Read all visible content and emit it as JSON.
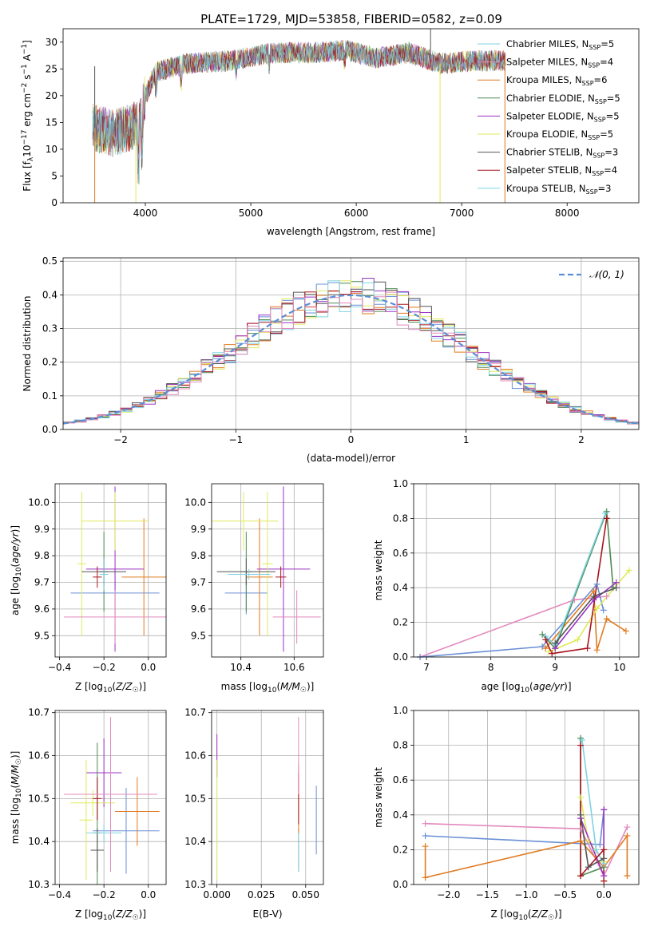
{
  "figure_title": "PLATE=1729, MJD=53858, FIBERID=0582, z=0.09",
  "colors": {
    "c0": "#6a8fd6",
    "c1": "#e07a1f",
    "c2": "#4d8a52",
    "c3": "#9b31c4",
    "c4": "#e0ea5a",
    "c5": "#555555",
    "c6": "#a8141e",
    "c7": "#7fd3e3",
    "c8": "#e389be",
    "normal": "#5b8ed6"
  },
  "chart_data": [
    {
      "id": "spectrum",
      "type": "line",
      "title": "PLATE=1729, MJD=53858, FIBERID=0582, z=0.09",
      "xlabel": "wavelength [Angstrom, rest frame]",
      "ylabel": "Flux [f_λ 10^-17 erg cm^-2 s^-1 A^-1]",
      "xlim": [
        3220,
        8680
      ],
      "ylim": [
        0,
        32.5
      ],
      "xticks": [
        4000,
        5000,
        6000,
        7000,
        8000
      ],
      "yticks": [
        0,
        5,
        10,
        15,
        20,
        25,
        30
      ],
      "grid": false,
      "legend": "upper right",
      "continuum_knots": [
        [
          3500,
          14
        ],
        [
          3700,
          13
        ],
        [
          3850,
          14
        ],
        [
          3950,
          15
        ],
        [
          4000,
          20
        ],
        [
          4100,
          24.5
        ],
        [
          4400,
          26
        ],
        [
          4800,
          26.5
        ],
        [
          5200,
          28
        ],
        [
          5600,
          28
        ],
        [
          5900,
          28.5
        ],
        [
          6200,
          27
        ],
        [
          6500,
          28
        ],
        [
          6800,
          26
        ],
        [
          7100,
          26.5
        ],
        [
          7400,
          26.5
        ]
      ],
      "series": [
        {
          "name": "Chabrier MILES, N_SSP=5",
          "color": "c7"
        },
        {
          "name": "Salpeter MILES, N_SSP=4",
          "color": "c8"
        },
        {
          "name": "Kroupa MILES, N_SSP=6",
          "color": "c1"
        },
        {
          "name": "Chabrier ELODIE, N_SSP=5",
          "color": "c2"
        },
        {
          "name": "Salpeter ELODIE, N_SSP=5",
          "color": "c3"
        },
        {
          "name": "Kroupa ELODIE, N_SSP=5",
          "color": "c4"
        },
        {
          "name": "Chabrier STELIB, N_SSP=3",
          "color": "c5"
        },
        {
          "name": "Salpeter STELIB, N_SSP=4",
          "color": "c6"
        },
        {
          "name": "Kroupa STELIB, N_SSP=3",
          "color": "c7"
        }
      ]
    },
    {
      "id": "residuals",
      "type": "line",
      "xlabel": "(data-model)/error",
      "ylabel": "Normed distribution",
      "xlim": [
        -2.5,
        2.5
      ],
      "ylim": [
        0,
        0.51
      ],
      "xticks": [
        -2,
        -1,
        0,
        1,
        2
      ],
      "yticks": [
        0.0,
        0.1,
        0.2,
        0.3,
        0.4,
        0.5
      ],
      "grid": true,
      "legend": "upper right",
      "legend_label": "𝒩(0, 1)",
      "bin_width": 0.1
    },
    {
      "id": "age_vs_Z",
      "type": "scatter",
      "xlabel": "Z [log10(Z/Z☉)]",
      "ylabel": "age  [log10(age/yr)]",
      "xlim": [
        -0.42,
        0.08
      ],
      "ylim": [
        9.42,
        10.07
      ],
      "xticks": [
        -0.4,
        -0.2,
        0.0
      ],
      "yticks": [
        9.5,
        9.6,
        9.7,
        9.8,
        9.9,
        10.0
      ],
      "grid": true,
      "points": [
        {
          "color": "c0",
          "x": -0.15,
          "xerr": 0.2,
          "y": 9.66,
          "yerr": 0.08
        },
        {
          "color": "c1",
          "x": -0.02,
          "xerr": 0.1,
          "y": 9.72,
          "yerr": 0.22
        },
        {
          "color": "c2",
          "x": -0.2,
          "xerr": 0.02,
          "y": 9.74,
          "yerr": 0.15
        },
        {
          "color": "c3",
          "x": -0.15,
          "xerr": 0.13,
          "y": 9.75,
          "yerr": 0.31
        },
        {
          "color": "c4",
          "x": -0.15,
          "xerr": 0.15,
          "y": 9.93,
          "yerr": 0.11
        },
        {
          "color": "c4",
          "x": -0.3,
          "xerr": 0.02,
          "y": 9.77,
          "yerr": 0.27
        },
        {
          "color": "c5",
          "x": -0.2,
          "xerr": 0.1,
          "y": 9.74,
          "yerr": 0.05
        },
        {
          "color": "c6",
          "x": -0.23,
          "xerr": 0.02,
          "y": 9.72,
          "yerr": 0.04
        },
        {
          "color": "c7",
          "x": -0.2,
          "xerr": 0.02,
          "y": 9.73,
          "yerr": 0.06
        },
        {
          "color": "c8",
          "x": -0.15,
          "xerr": 0.23,
          "y": 9.57,
          "yerr": 0.1
        }
      ]
    },
    {
      "id": "age_vs_mass",
      "type": "scatter",
      "xlabel": "mass [log10(M/M☉)]",
      "ylabel": "",
      "xlim": [
        10.29,
        10.71
      ],
      "ylim": [
        9.42,
        10.07
      ],
      "xticks": [
        10.4,
        10.6
      ],
      "yticks": [
        9.5,
        9.6,
        9.7,
        9.8,
        9.9,
        10.0
      ],
      "grid": true,
      "points": [
        {
          "color": "c0",
          "x": 10.42,
          "xerr": 0.08,
          "y": 9.66,
          "yerr": 0.08
        },
        {
          "color": "c1",
          "x": 10.47,
          "xerr": 0.05,
          "y": 9.72,
          "yerr": 0.22
        },
        {
          "color": "c2",
          "x": 10.42,
          "xerr": 0.02,
          "y": 9.74,
          "yerr": 0.15
        },
        {
          "color": "c3",
          "x": 10.56,
          "xerr": 0.1,
          "y": 9.75,
          "yerr": 0.31
        },
        {
          "color": "c4",
          "x": 10.41,
          "xerr": 0.13,
          "y": 9.93,
          "yerr": 0.11
        },
        {
          "color": "c4",
          "x": 10.5,
          "xerr": 0.02,
          "y": 9.77,
          "yerr": 0.27
        },
        {
          "color": "c5",
          "x": 10.42,
          "xerr": 0.11,
          "y": 9.74,
          "yerr": 0.05
        },
        {
          "color": "c6",
          "x": 10.55,
          "xerr": 0.02,
          "y": 9.72,
          "yerr": 0.04
        },
        {
          "color": "c7",
          "x": 10.43,
          "xerr": 0.08,
          "y": 9.73,
          "yerr": 0.02
        },
        {
          "color": "c8",
          "x": 10.61,
          "xerr": 0.09,
          "y": 9.57,
          "yerr": 0.1
        }
      ]
    },
    {
      "id": "weight_vs_age",
      "type": "line",
      "xlabel": "age  [log10(age/yr)]",
      "ylabel": "mass weight",
      "xlim": [
        6.8,
        10.3
      ],
      "ylim": [
        0,
        1.0
      ],
      "xticks": [
        7,
        8,
        9,
        10
      ],
      "yticks": [
        0.0,
        0.2,
        0.4,
        0.6,
        0.8,
        1.0
      ],
      "grid": true,
      "series": [
        {
          "color": "c8",
          "points": [
            [
              6.9,
              0.0
            ],
            [
              9.3,
              0.33
            ],
            [
              9.8,
              0.35
            ]
          ]
        },
        {
          "color": "c0",
          "points": [
            [
              6.9,
              0.0
            ],
            [
              8.8,
              0.06
            ],
            [
              9.65,
              0.42
            ],
            [
              9.75,
              0.27
            ]
          ]
        },
        {
          "color": "c1",
          "points": [
            [
              8.85,
              0.05
            ],
            [
              9.6,
              0.38
            ],
            [
              9.65,
              0.04
            ],
            [
              9.8,
              0.22
            ],
            [
              10.1,
              0.15
            ]
          ]
        },
        {
          "color": "c4",
          "points": [
            [
              8.9,
              0.03
            ],
            [
              9.35,
              0.1
            ],
            [
              9.65,
              0.28
            ],
            [
              10.15,
              0.5
            ]
          ]
        },
        {
          "color": "c2",
          "points": [
            [
              8.8,
              0.13
            ],
            [
              9.0,
              0.05
            ],
            [
              9.8,
              0.84
            ],
            [
              9.9,
              0.4
            ]
          ]
        },
        {
          "color": "c7",
          "points": [
            [
              8.85,
              0.12
            ],
            [
              9.0,
              0.07
            ],
            [
              9.78,
              0.83
            ]
          ]
        },
        {
          "color": "c3",
          "points": [
            [
              9.0,
              0.05
            ],
            [
              9.6,
              0.33
            ],
            [
              9.95,
              0.43
            ]
          ]
        },
        {
          "color": "c6",
          "points": [
            [
              8.85,
              0.1
            ],
            [
              8.95,
              0.02
            ],
            [
              9.5,
              0.05
            ],
            [
              9.8,
              0.8
            ]
          ]
        },
        {
          "color": "c5",
          "points": [
            [
              9.0,
              0.08
            ],
            [
              9.6,
              0.35
            ],
            [
              9.95,
              0.4
            ]
          ]
        }
      ]
    },
    {
      "id": "mass_vs_Z",
      "type": "scatter",
      "xlabel": "Z [log10(Z/Z☉)]",
      "ylabel": "mass [log10(M/M☉)]",
      "xlim": [
        -0.42,
        0.08
      ],
      "ylim": [
        10.3,
        10.705
      ],
      "xticks": [
        -0.4,
        -0.2,
        0.0
      ],
      "yticks": [
        10.3,
        10.4,
        10.5,
        10.6,
        10.7
      ],
      "grid": true,
      "points": [
        {
          "color": "c0",
          "x": -0.1,
          "xerr": 0.15,
          "y": 10.425,
          "yerr": 0.1
        },
        {
          "color": "c1",
          "x": -0.05,
          "xerr": 0.1,
          "y": 10.47,
          "yerr": 0.08
        },
        {
          "color": "c2",
          "x": -0.23,
          "xerr": 0.02,
          "y": 10.42,
          "yerr": 0.21
        },
        {
          "color": "c3",
          "x": -0.2,
          "xerr": 0.08,
          "y": 10.56,
          "yerr": 0.08
        },
        {
          "color": "c4",
          "x": -0.28,
          "xerr": 0.03,
          "y": 10.45,
          "yerr": 0.14
        },
        {
          "color": "c4",
          "x": -0.25,
          "xerr": 0.1,
          "y": 10.49,
          "yerr": 0.03
        },
        {
          "color": "c5",
          "x": -0.23,
          "xerr": 0.03,
          "y": 10.38,
          "yerr": 0.05
        },
        {
          "color": "c6",
          "x": -0.23,
          "xerr": 0.02,
          "y": 10.5,
          "yerr": 0.05
        },
        {
          "color": "c7",
          "x": -0.2,
          "xerr": 0.08,
          "y": 10.42,
          "yerr": 0.02
        },
        {
          "color": "c8",
          "x": -0.17,
          "xerr": 0.21,
          "y": 10.51,
          "yerr": 0.18
        }
      ]
    },
    {
      "id": "mass_vs_ebv",
      "type": "scatter",
      "xlabel": "E(B-V)",
      "ylabel": "",
      "xlim": [
        -0.003,
        0.06
      ],
      "ylim": [
        10.3,
        10.705
      ],
      "xticks": [
        0.0,
        0.025,
        0.05
      ],
      "yticks": [
        10.3,
        10.4,
        10.5,
        10.6,
        10.7
      ],
      "grid": true,
      "points": [
        {
          "color": "c3",
          "x": 0.0,
          "xerr": 0,
          "y": 10.6,
          "yerr": 0.05
        },
        {
          "color": "c4",
          "x": 0.0,
          "xerr": 0,
          "y": 10.45,
          "yerr": 0.14
        },
        {
          "color": "c2",
          "x": 0.046,
          "xerr": 0,
          "y": 10.38,
          "yerr": 0.05
        },
        {
          "color": "c7",
          "x": 0.046,
          "xerr": 0,
          "y": 10.38,
          "yerr": 0.05
        },
        {
          "color": "c1",
          "x": 0.046,
          "xerr": 0,
          "y": 10.5,
          "yerr": 0.08
        },
        {
          "color": "c6",
          "x": 0.046,
          "xerr": 0,
          "y": 10.5,
          "yerr": 0.06
        },
        {
          "color": "c8",
          "x": 0.046,
          "xerr": 0,
          "y": 10.6,
          "yerr": 0.09
        },
        {
          "color": "c0",
          "x": 0.056,
          "xerr": 0,
          "y": 10.45,
          "yerr": 0.08
        }
      ]
    },
    {
      "id": "weight_vs_Z",
      "type": "line",
      "xlabel": "Z [log10(Z/Z☉)]",
      "ylabel": "mass weight",
      "xlim": [
        -2.45,
        0.45
      ],
      "ylim": [
        0,
        1.0
      ],
      "xticks": [
        -2.0,
        -1.5,
        -1.0,
        -0.5,
        0.0
      ],
      "yticks": [
        0.0,
        0.2,
        0.4,
        0.6,
        0.8,
        1.0
      ],
      "grid": true,
      "series": [
        {
          "color": "c8",
          "points": [
            [
              -2.3,
              0.35
            ],
            [
              -0.3,
              0.32
            ],
            [
              0.0,
              0.05
            ],
            [
              0.3,
              0.33
            ]
          ]
        },
        {
          "color": "c0",
          "points": [
            [
              -2.3,
              0.28
            ],
            [
              -0.05,
              0.23
            ],
            [
              0.0,
              0.43
            ],
            [
              0.0,
              0.02
            ]
          ]
        },
        {
          "color": "c1",
          "points": [
            [
              -2.3,
              0.22
            ],
            [
              -2.3,
              0.04
            ],
            [
              -0.3,
              0.25
            ],
            [
              0.0,
              0.1
            ],
            [
              0.3,
              0.28
            ],
            [
              0.3,
              0.05
            ]
          ]
        },
        {
          "color": "c4",
          "points": [
            [
              -0.3,
              0.5
            ],
            [
              -0.2,
              0.25
            ],
            [
              0.0,
              0.13
            ],
            [
              0.0,
              0.02
            ]
          ]
        },
        {
          "color": "c2",
          "points": [
            [
              -0.3,
              0.84
            ],
            [
              -0.3,
              0.05
            ],
            [
              0.0,
              0.1
            ]
          ]
        },
        {
          "color": "c7",
          "points": [
            [
              -0.28,
              0.83
            ],
            [
              -0.1,
              0.2
            ],
            [
              0.0,
              0.12
            ]
          ]
        },
        {
          "color": "c3",
          "points": [
            [
              -0.3,
              0.38
            ],
            [
              0.0,
              0.05
            ],
            [
              0.0,
              0.43
            ]
          ]
        },
        {
          "color": "c6",
          "points": [
            [
              -0.3,
              0.8
            ],
            [
              -0.3,
              0.05
            ],
            [
              0.0,
              0.2
            ],
            [
              0.0,
              0.02
            ]
          ]
        },
        {
          "color": "c5",
          "points": [
            [
              -0.3,
              0.4
            ],
            [
              -0.2,
              0.1
            ],
            [
              0.0,
              0.15
            ]
          ]
        }
      ]
    }
  ]
}
